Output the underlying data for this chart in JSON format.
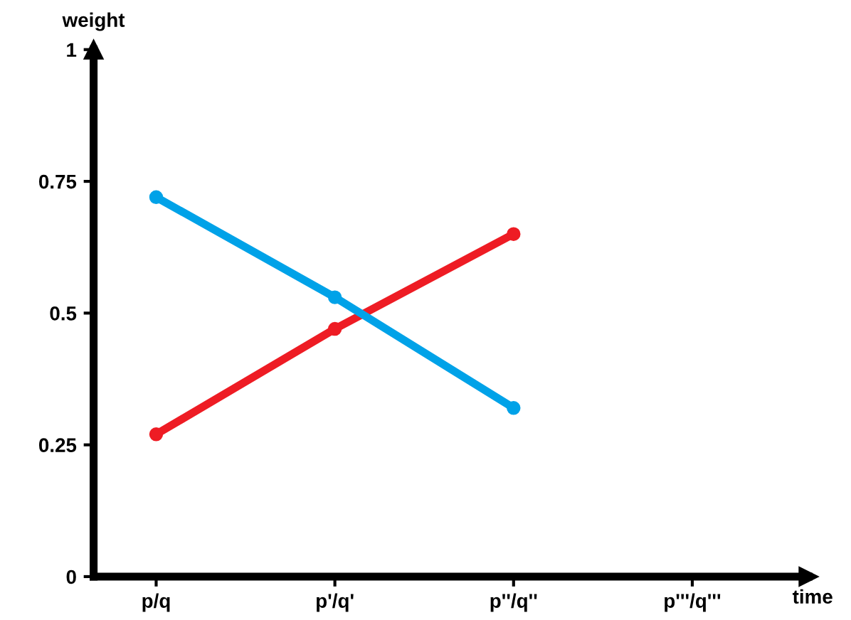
{
  "chart_data": {
    "type": "line",
    "xlabel": "time",
    "ylabel": "weight",
    "categories": [
      "p/q",
      "p'/q'",
      "p''/q''",
      "p'''/q'''"
    ],
    "series": [
      {
        "color": "#ee1c24",
        "values": [
          0.27,
          0.47,
          0.65,
          null
        ]
      },
      {
        "color": "#00a2e8",
        "values": [
          0.72,
          0.53,
          0.32,
          null
        ]
      }
    ],
    "ylim": [
      0,
      1
    ],
    "yticks": [
      0,
      0.25,
      0.5,
      0.75,
      1
    ],
    "marker": "circle",
    "line_style": "solid",
    "grid": false,
    "legend": false
  }
}
